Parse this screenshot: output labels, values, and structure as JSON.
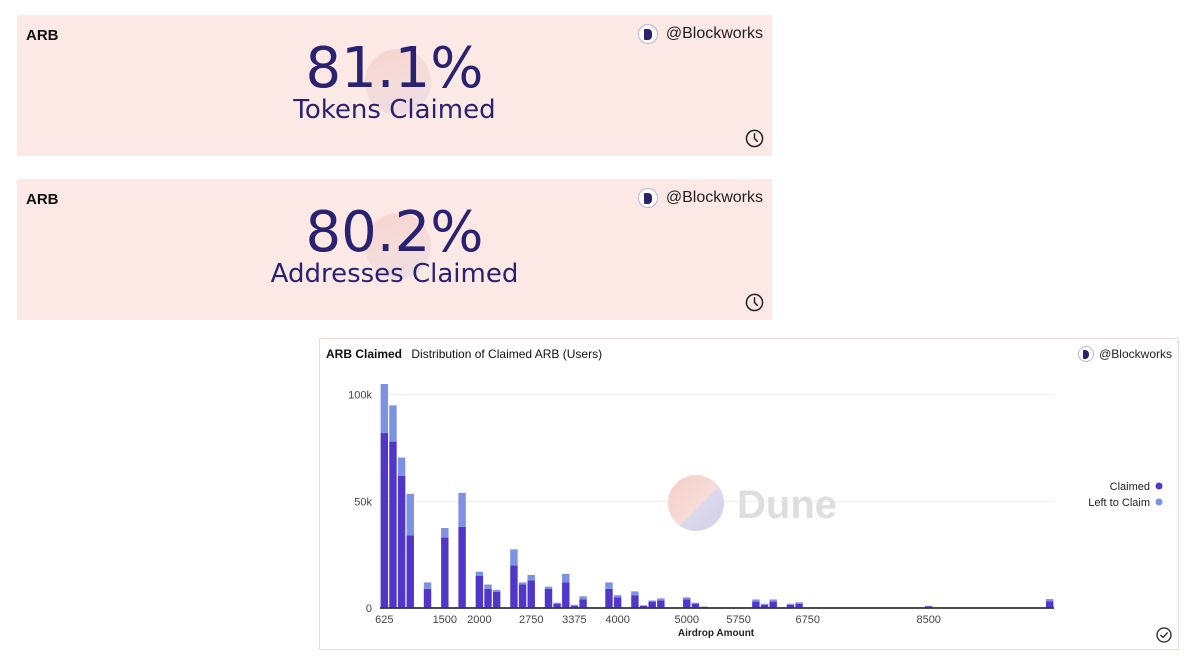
{
  "counter_tokens": {
    "label": "ARB",
    "brand": "@Blockworks",
    "value": "81.1%",
    "caption": "Tokens Claimed"
  },
  "counter_addresses": {
    "label": "ARB",
    "brand": "@Blockworks",
    "value": "80.2%",
    "caption": "Addresses Claimed"
  },
  "chart_panel": {
    "query_name": "ARB Claimed",
    "viz_title": "Distribution of Claimed ARB (Users)",
    "brand": "@Blockworks",
    "watermark": "Dune"
  },
  "colors": {
    "claimed": "#5137c9",
    "left_to_claim": "#7d93e2",
    "counter_bg": "#fce9e6",
    "counter_text": "#2a2270"
  },
  "chart_data": {
    "type": "bar",
    "stacked": true,
    "title": "Distribution of Claimed ARB (Users)",
    "xlabel": "Airdrop Amount",
    "ylabel": "",
    "ylim": [
      0,
      105000
    ],
    "yticks": [
      0,
      50000,
      100000
    ],
    "ytick_labels": [
      "0",
      "50k",
      "100k"
    ],
    "xtick_labels": [
      "625",
      "1500",
      "2000",
      "2750",
      "3375",
      "4000",
      "5000",
      "5750",
      "6750",
      "8500"
    ],
    "x": [
      625,
      750,
      875,
      1000,
      1250,
      1500,
      1750,
      2000,
      2125,
      2250,
      2500,
      2625,
      2750,
      3000,
      3125,
      3250,
      3375,
      3500,
      3750,
      3875,
      4000,
      4250,
      4375,
      4500,
      4625,
      4750,
      5000,
      5125,
      5250,
      5500,
      5625,
      5750,
      6000,
      6125,
      6250,
      6500,
      6625,
      6750,
      7000,
      7500,
      8000,
      8500,
      10250
    ],
    "series": [
      {
        "name": "Claimed",
        "values": [
          82000,
          78000,
          62000,
          34000,
          9000,
          33000,
          38000,
          15000,
          9000,
          7500,
          20000,
          11000,
          13000,
          9000,
          2000,
          12000,
          1000,
          4000,
          0,
          9000,
          5000,
          6000,
          1000,
          3000,
          3500,
          0,
          4000,
          2000,
          500,
          0,
          0,
          0,
          3000,
          1500,
          3000,
          1500,
          2000,
          0,
          0,
          0,
          0,
          700,
          3200
        ]
      },
      {
        "name": "Left to Claim",
        "values": [
          23000,
          17000,
          8500,
          19500,
          3000,
          4500,
          16000,
          2000,
          2000,
          1000,
          7500,
          1000,
          2500,
          1000,
          500,
          4000,
          500,
          1500,
          0,
          3000,
          1000,
          1800,
          300,
          500,
          1000,
          0,
          1000,
          500,
          200,
          0,
          0,
          0,
          1000,
          500,
          1000,
          500,
          700,
          0,
          0,
          0,
          0,
          300,
          1000
        ]
      }
    ],
    "legend": {
      "position": "right",
      "entries": [
        "Claimed",
        "Left to Claim"
      ]
    }
  }
}
